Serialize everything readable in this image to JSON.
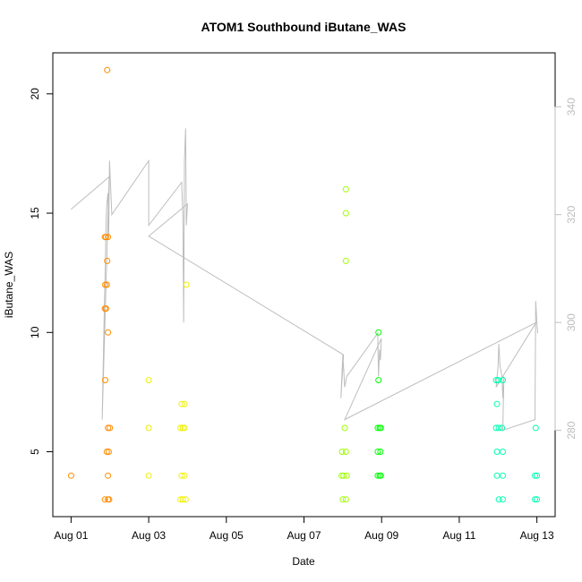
{
  "chart_data": {
    "type": "scatter",
    "title": "ATOM1 Southbound iButane_WAS",
    "xlabel": "Date",
    "ylabel": "iButane_WAS",
    "x_ticks": [
      "Aug 01",
      "Aug 03",
      "Aug 05",
      "Aug 07",
      "Aug 09",
      "Aug 11",
      "Aug 13"
    ],
    "x_tick_values": [
      0,
      2,
      4,
      6,
      8,
      10,
      12
    ],
    "xlim": [
      -0.47,
      12.47
    ],
    "y_ticks": [
      5,
      10,
      15,
      20
    ],
    "ylim": [
      2.28,
      21.72
    ],
    "y2_ticks": [
      280,
      300,
      320,
      340
    ],
    "y2lim": [
      264,
      350
    ],
    "colors": {
      "grey": "#bdbdbd",
      "orange": "#ff8c00",
      "amber": "#ffb000",
      "yellow": "#f0f000",
      "lime": "#a0ff00",
      "green": "#00ff00",
      "aqua": "#00ffb0"
    },
    "points": [
      {
        "x": 0.0,
        "y": 4,
        "c": "orange"
      },
      {
        "x": 0.87,
        "y": 14,
        "c": "orange"
      },
      {
        "x": 0.9,
        "y": 14,
        "c": "orange"
      },
      {
        "x": 0.95,
        "y": 14,
        "c": "orange"
      },
      {
        "x": 0.88,
        "y": 12,
        "c": "orange"
      },
      {
        "x": 0.92,
        "y": 12,
        "c": "orange"
      },
      {
        "x": 0.87,
        "y": 11,
        "c": "orange"
      },
      {
        "x": 0.9,
        "y": 11,
        "c": "orange"
      },
      {
        "x": 0.88,
        "y": 8,
        "c": "orange"
      },
      {
        "x": 0.93,
        "y": 21,
        "c": "orange"
      },
      {
        "x": 0.93,
        "y": 13,
        "c": "orange"
      },
      {
        "x": 0.95,
        "y": 10,
        "c": "orange"
      },
      {
        "x": 0.95,
        "y": 6,
        "c": "orange"
      },
      {
        "x": 1.0,
        "y": 6,
        "c": "orange"
      },
      {
        "x": 0.92,
        "y": 5,
        "c": "orange"
      },
      {
        "x": 0.97,
        "y": 5,
        "c": "orange"
      },
      {
        "x": 0.95,
        "y": 4,
        "c": "orange"
      },
      {
        "x": 0.87,
        "y": 3,
        "c": "orange"
      },
      {
        "x": 0.95,
        "y": 3,
        "c": "orange"
      },
      {
        "x": 0.98,
        "y": 3,
        "c": "orange"
      },
      {
        "x": 2.0,
        "y": 8,
        "c": "yellow"
      },
      {
        "x": 2.0,
        "y": 6,
        "c": "yellow"
      },
      {
        "x": 2.0,
        "y": 4,
        "c": "yellow"
      },
      {
        "x": 2.85,
        "y": 7,
        "c": "yellow"
      },
      {
        "x": 2.92,
        "y": 7,
        "c": "yellow"
      },
      {
        "x": 2.82,
        "y": 6,
        "c": "yellow"
      },
      {
        "x": 2.88,
        "y": 6,
        "c": "yellow"
      },
      {
        "x": 2.92,
        "y": 6,
        "c": "yellow"
      },
      {
        "x": 2.85,
        "y": 4,
        "c": "yellow"
      },
      {
        "x": 2.92,
        "y": 4,
        "c": "yellow"
      },
      {
        "x": 2.82,
        "y": 3,
        "c": "yellow"
      },
      {
        "x": 2.88,
        "y": 3,
        "c": "yellow"
      },
      {
        "x": 2.95,
        "y": 3,
        "c": "yellow"
      },
      {
        "x": 2.97,
        "y": 12,
        "c": "yellow"
      },
      {
        "x": 7.08,
        "y": 16,
        "c": "lime"
      },
      {
        "x": 7.08,
        "y": 15,
        "c": "lime"
      },
      {
        "x": 7.08,
        "y": 13,
        "c": "lime"
      },
      {
        "x": 7.05,
        "y": 6,
        "c": "lime"
      },
      {
        "x": 6.98,
        "y": 5,
        "c": "lime"
      },
      {
        "x": 7.08,
        "y": 5,
        "c": "lime"
      },
      {
        "x": 6.97,
        "y": 4,
        "c": "lime"
      },
      {
        "x": 7.02,
        "y": 4,
        "c": "lime"
      },
      {
        "x": 7.1,
        "y": 4,
        "c": "lime"
      },
      {
        "x": 7.0,
        "y": 3,
        "c": "lime"
      },
      {
        "x": 7.08,
        "y": 3,
        "c": "lime"
      },
      {
        "x": 7.92,
        "y": 10,
        "c": "green"
      },
      {
        "x": 7.92,
        "y": 8,
        "c": "green"
      },
      {
        "x": 7.9,
        "y": 6,
        "c": "green"
      },
      {
        "x": 7.95,
        "y": 6,
        "c": "green"
      },
      {
        "x": 7.98,
        "y": 6,
        "c": "green"
      },
      {
        "x": 7.9,
        "y": 5,
        "c": "green"
      },
      {
        "x": 7.97,
        "y": 5,
        "c": "green"
      },
      {
        "x": 7.9,
        "y": 4,
        "c": "green"
      },
      {
        "x": 7.95,
        "y": 4,
        "c": "green"
      },
      {
        "x": 7.98,
        "y": 4,
        "c": "green"
      },
      {
        "x": 10.95,
        "y": 8,
        "c": "aqua"
      },
      {
        "x": 11.0,
        "y": 8,
        "c": "aqua"
      },
      {
        "x": 11.12,
        "y": 8,
        "c": "aqua"
      },
      {
        "x": 10.97,
        "y": 7,
        "c": "aqua"
      },
      {
        "x": 10.95,
        "y": 6,
        "c": "aqua"
      },
      {
        "x": 11.02,
        "y": 6,
        "c": "aqua"
      },
      {
        "x": 11.1,
        "y": 6,
        "c": "aqua"
      },
      {
        "x": 10.97,
        "y": 5,
        "c": "aqua"
      },
      {
        "x": 11.12,
        "y": 5,
        "c": "aqua"
      },
      {
        "x": 10.97,
        "y": 4,
        "c": "aqua"
      },
      {
        "x": 11.12,
        "y": 4,
        "c": "aqua"
      },
      {
        "x": 11.02,
        "y": 3,
        "c": "aqua"
      },
      {
        "x": 11.12,
        "y": 3,
        "c": "aqua"
      },
      {
        "x": 11.97,
        "y": 6,
        "c": "aqua"
      },
      {
        "x": 11.95,
        "y": 4,
        "c": "aqua"
      },
      {
        "x": 12.0,
        "y": 4,
        "c": "aqua"
      },
      {
        "x": 11.95,
        "y": 3,
        "c": "aqua"
      },
      {
        "x": 12.0,
        "y": 3,
        "c": "aqua"
      }
    ],
    "secondary_line": [
      [
        0.0,
        321
      ],
      [
        0.98,
        327
      ],
      [
        0.8,
        282
      ],
      [
        0.85,
        300
      ],
      [
        0.88,
        310
      ],
      [
        0.9,
        318
      ],
      [
        0.92,
        322
      ],
      [
        0.95,
        324
      ],
      [
        0.97,
        316
      ],
      [
        0.99,
        330
      ],
      [
        1.02,
        325
      ],
      [
        1.05,
        320
      ],
      [
        2.0,
        330
      ],
      [
        2.0,
        318
      ],
      [
        2.85,
        326
      ],
      [
        2.88,
        320
      ],
      [
        2.9,
        300
      ],
      [
        2.92,
        330
      ],
      [
        2.95,
        336
      ],
      [
        2.97,
        318
      ],
      [
        3.0,
        322
      ],
      [
        2.0,
        316
      ],
      [
        7.02,
        294
      ],
      [
        6.95,
        286
      ],
      [
        7.0,
        294
      ],
      [
        7.05,
        288
      ],
      [
        7.1,
        290
      ],
      [
        7.9,
        298
      ],
      [
        7.92,
        290
      ],
      [
        7.95,
        295
      ],
      [
        7.97,
        293
      ],
      [
        7.99,
        297
      ],
      [
        7.05,
        282
      ],
      [
        11.98,
        300
      ],
      [
        10.95,
        288
      ],
      [
        11.0,
        292
      ],
      [
        11.02,
        296
      ],
      [
        11.05,
        292
      ],
      [
        11.1,
        290
      ],
      [
        11.12,
        286
      ],
      [
        11.15,
        290
      ],
      [
        11.12,
        280
      ],
      [
        11.95,
        282
      ],
      [
        11.97,
        304
      ],
      [
        12.0,
        300
      ],
      [
        12.02,
        298
      ]
    ]
  }
}
